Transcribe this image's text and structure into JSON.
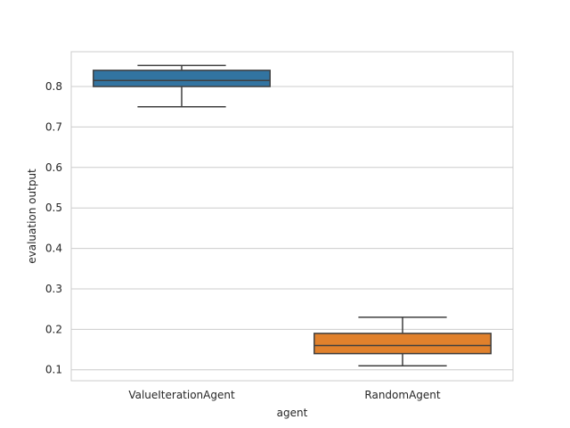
{
  "chart_data": {
    "type": "box",
    "title": "",
    "xlabel": "agent",
    "ylabel": "evaluation output",
    "ylim": [
      0.073,
      0.886
    ],
    "yticks": [
      0.1,
      0.2,
      0.3,
      0.4,
      0.5,
      0.6,
      0.7,
      0.8
    ],
    "ytick_labels": [
      "0.1",
      "0.2",
      "0.3",
      "0.4",
      "0.5",
      "0.6",
      "0.7",
      "0.8"
    ],
    "grid": "horizontal",
    "categories": [
      "ValueIterationAgent",
      "RandomAgent"
    ],
    "boxes": [
      {
        "category": "ValueIterationAgent",
        "whisker_low": 0.75,
        "q1": 0.8,
        "median": 0.815,
        "q3": 0.84,
        "whisker_high": 0.852,
        "color": "#3274a1"
      },
      {
        "category": "RandomAgent",
        "whisker_low": 0.11,
        "q1": 0.14,
        "median": 0.16,
        "q3": 0.19,
        "whisker_high": 0.23,
        "color": "#e1812c"
      }
    ]
  }
}
